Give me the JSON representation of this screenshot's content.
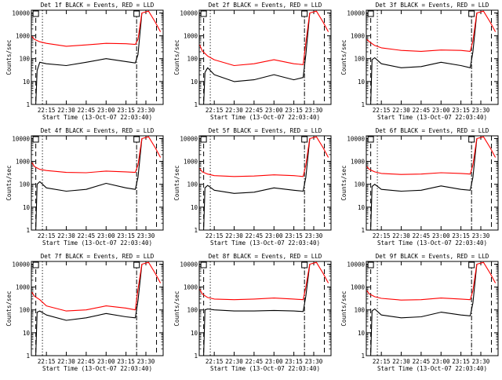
{
  "figure": {
    "xlabel": "Start Time (13-Oct-07 22:03:40)",
    "ylabel": "Counts/sec",
    "y_tick_labels": [
      "1",
      "10",
      "100",
      "1000",
      "10000"
    ],
    "x_tick_labels": [
      "22:15",
      "22:30",
      "22:45",
      "23:00",
      "23:15",
      "23:30"
    ]
  },
  "chart_data": [
    {
      "type": "line",
      "title": "Det 1f BLACK = Events, RED = LLD",
      "xlabel": "Start Time (13-Oct-07 22:03:40)",
      "ylabel": "Counts/sec",
      "y_scale": "log",
      "ylim": [
        1,
        10000
      ],
      "xlim": [
        "22:03:40",
        "23:43:00"
      ],
      "x_ticks": [
        "22:15",
        "22:30",
        "22:45",
        "23:00",
        "23:15",
        "23:30"
      ],
      "y_ticks": [
        1,
        10,
        100,
        1000,
        10000
      ],
      "series": [
        {
          "color": "#000000",
          "x": [
            "22:07",
            "22:08",
            "22:10",
            "22:15",
            "22:30",
            "22:45",
            "23:00",
            "23:15",
            "23:22",
            "23:24",
            "23:27"
          ],
          "y": [
            1,
            30,
            70,
            60,
            50,
            70,
            100,
            75,
            65,
            150,
            10000
          ]
        },
        {
          "color": "#ff0000",
          "x": [
            "22:04",
            "22:06",
            "22:10",
            "22:15",
            "22:30",
            "22:45",
            "23:00",
            "23:15",
            "23:22",
            "23:24",
            "23:27",
            "23:32",
            "23:37",
            "23:41"
          ],
          "y": [
            950,
            700,
            550,
            470,
            350,
            400,
            470,
            450,
            420,
            700,
            10000,
            12000,
            4000,
            1500
          ]
        }
      ],
      "vlines": [
        {
          "x": "22:07",
          "style": "dashed"
        },
        {
          "x": "22:12",
          "style": "dotted"
        },
        {
          "x": "23:23",
          "style": "dash-dot"
        },
        {
          "x": "23:38",
          "style": "dashed"
        }
      ]
    },
    {
      "type": "line",
      "title": "Det 2f BLACK = Events, RED = LLD",
      "xlabel": "Start Time (13-Oct-07 22:03:40)",
      "ylabel": "Counts/sec",
      "y_scale": "log",
      "ylim": [
        1,
        10000
      ],
      "xlim": [
        "22:03:40",
        "23:43:00"
      ],
      "x_ticks": [
        "22:15",
        "22:30",
        "22:45",
        "23:00",
        "23:15",
        "23:30"
      ],
      "y_ticks": [
        1,
        10,
        100,
        1000,
        10000
      ],
      "series": [
        {
          "color": "#000000",
          "x": [
            "22:07",
            "22:08",
            "22:10",
            "22:15",
            "22:30",
            "22:45",
            "23:00",
            "23:15",
            "23:22",
            "23:24",
            "23:27"
          ],
          "y": [
            1,
            25,
            40,
            20,
            10,
            12,
            20,
            12,
            15,
            150,
            10000
          ]
        },
        {
          "color": "#ff0000",
          "x": [
            "22:04",
            "22:06",
            "22:10",
            "22:15",
            "22:30",
            "22:45",
            "23:00",
            "23:15",
            "23:22",
            "23:24",
            "23:27",
            "23:32",
            "23:37",
            "23:41"
          ],
          "y": [
            400,
            220,
            130,
            90,
            50,
            60,
            90,
            60,
            55,
            500,
            10000,
            12000,
            4000,
            1500
          ]
        }
      ],
      "vlines": [
        {
          "x": "22:07",
          "style": "dashed"
        },
        {
          "x": "22:12",
          "style": "dotted"
        },
        {
          "x": "23:23",
          "style": "dash-dot"
        },
        {
          "x": "23:38",
          "style": "dashed"
        }
      ]
    },
    {
      "type": "line",
      "title": "Det 3f BLACK = Events, RED = LLD",
      "xlabel": "Start Time (13-Oct-07 22:03:40)",
      "ylabel": "Counts/sec",
      "y_scale": "log",
      "ylim": [
        1,
        10000
      ],
      "xlim": [
        "22:03:40",
        "23:43:00"
      ],
      "x_ticks": [
        "22:15",
        "22:30",
        "22:45",
        "23:00",
        "23:15",
        "23:30"
      ],
      "y_ticks": [
        1,
        10,
        100,
        1000,
        10000
      ],
      "series": [
        {
          "color": "#000000",
          "x": [
            "22:07",
            "22:08",
            "22:10",
            "22:15",
            "22:30",
            "22:45",
            "23:00",
            "23:15",
            "23:22",
            "23:24",
            "23:27"
          ],
          "y": [
            1,
            90,
            110,
            60,
            40,
            45,
            70,
            50,
            40,
            200,
            10000
          ]
        },
        {
          "color": "#ff0000",
          "x": [
            "22:04",
            "22:06",
            "22:10",
            "22:15",
            "22:30",
            "22:45",
            "23:00",
            "23:15",
            "23:22",
            "23:24",
            "23:27",
            "23:32",
            "23:37",
            "23:41"
          ],
          "y": [
            700,
            550,
            380,
            300,
            230,
            210,
            240,
            230,
            210,
            600,
            10000,
            12000,
            4000,
            1500
          ]
        }
      ],
      "vlines": [
        {
          "x": "22:07",
          "style": "dashed"
        },
        {
          "x": "22:12",
          "style": "dotted"
        },
        {
          "x": "23:23",
          "style": "dash-dot"
        },
        {
          "x": "23:38",
          "style": "dashed"
        }
      ]
    },
    {
      "type": "line",
      "title": "Det 4f BLACK = Events, RED = LLD",
      "xlabel": "Start Time (13-Oct-07 22:03:40)",
      "ylabel": "Counts/sec",
      "y_scale": "log",
      "ylim": [
        1,
        10000
      ],
      "xlim": [
        "22:03:40",
        "23:43:00"
      ],
      "x_ticks": [
        "22:15",
        "22:30",
        "22:45",
        "23:00",
        "23:15",
        "23:30"
      ],
      "y_ticks": [
        1,
        10,
        100,
        1000,
        10000
      ],
      "series": [
        {
          "color": "#000000",
          "x": [
            "22:07",
            "22:08",
            "22:10",
            "22:15",
            "22:30",
            "22:45",
            "23:00",
            "23:15",
            "23:22",
            "23:24",
            "23:27"
          ],
          "y": [
            1,
            100,
            130,
            70,
            50,
            60,
            110,
            70,
            60,
            200,
            10000
          ]
        },
        {
          "color": "#ff0000",
          "x": [
            "22:04",
            "22:06",
            "22:10",
            "22:15",
            "22:30",
            "22:45",
            "23:00",
            "23:15",
            "23:22",
            "23:24",
            "23:27",
            "23:32",
            "23:37",
            "23:41"
          ],
          "y": [
            900,
            600,
            450,
            400,
            330,
            320,
            380,
            350,
            330,
            700,
            10000,
            12000,
            4000,
            1500
          ]
        }
      ],
      "vlines": [
        {
          "x": "22:07",
          "style": "dashed"
        },
        {
          "x": "22:12",
          "style": "dotted"
        },
        {
          "x": "23:23",
          "style": "dash-dot"
        },
        {
          "x": "23:38",
          "style": "dashed"
        }
      ]
    },
    {
      "type": "line",
      "title": "Det 5f BLACK = Events, RED = LLD",
      "xlabel": "Start Time (13-Oct-07 22:03:40)",
      "ylabel": "Counts/sec",
      "y_scale": "log",
      "ylim": [
        1,
        10000
      ],
      "xlim": [
        "22:03:40",
        "23:43:00"
      ],
      "x_ticks": [
        "22:15",
        "22:30",
        "22:45",
        "23:00",
        "23:15",
        "23:30"
      ],
      "y_ticks": [
        1,
        10,
        100,
        1000,
        10000
      ],
      "series": [
        {
          "color": "#000000",
          "x": [
            "22:07",
            "22:08",
            "22:10",
            "22:15",
            "22:30",
            "22:45",
            "23:00",
            "23:15",
            "23:22",
            "23:24",
            "23:27"
          ],
          "y": [
            1,
            70,
            90,
            55,
            40,
            45,
            70,
            55,
            50,
            200,
            10000
          ]
        },
        {
          "color": "#ff0000",
          "x": [
            "22:04",
            "22:06",
            "22:10",
            "22:15",
            "22:30",
            "22:45",
            "23:00",
            "23:15",
            "23:22",
            "23:24",
            "23:27",
            "23:32",
            "23:37",
            "23:41"
          ],
          "y": [
            500,
            350,
            280,
            240,
            220,
            230,
            260,
            240,
            220,
            700,
            10000,
            12000,
            4000,
            1500
          ]
        }
      ],
      "vlines": [
        {
          "x": "22:07",
          "style": "dashed"
        },
        {
          "x": "22:12",
          "style": "dotted"
        },
        {
          "x": "23:23",
          "style": "dash-dot"
        },
        {
          "x": "23:38",
          "style": "dashed"
        }
      ]
    },
    {
      "type": "line",
      "title": "Det 6f BLACK = Events, RED = LLD",
      "xlabel": "Start Time (13-Oct-07 22:03:40)",
      "ylabel": "Counts/sec",
      "y_scale": "log",
      "ylim": [
        1,
        10000
      ],
      "xlim": [
        "22:03:40",
        "23:43:00"
      ],
      "x_ticks": [
        "22:15",
        "22:30",
        "22:45",
        "23:00",
        "23:15",
        "23:30"
      ],
      "y_ticks": [
        1,
        10,
        100,
        1000,
        10000
      ],
      "series": [
        {
          "color": "#000000",
          "x": [
            "22:07",
            "22:08",
            "22:10",
            "22:15",
            "22:30",
            "22:45",
            "23:00",
            "23:15",
            "23:22",
            "23:24",
            "23:27"
          ],
          "y": [
            1,
            80,
            100,
            60,
            50,
            55,
            85,
            60,
            55,
            200,
            10000
          ]
        },
        {
          "color": "#ff0000",
          "x": [
            "22:04",
            "22:06",
            "22:10",
            "22:15",
            "22:30",
            "22:45",
            "23:00",
            "23:15",
            "23:22",
            "23:24",
            "23:27",
            "23:32",
            "23:37",
            "23:41"
          ],
          "y": [
            600,
            450,
            350,
            300,
            270,
            280,
            320,
            300,
            280,
            700,
            10000,
            12000,
            4000,
            1500
          ]
        }
      ],
      "vlines": [
        {
          "x": "22:07",
          "style": "dashed"
        },
        {
          "x": "22:12",
          "style": "dotted"
        },
        {
          "x": "23:23",
          "style": "dash-dot"
        },
        {
          "x": "23:38",
          "style": "dashed"
        }
      ]
    },
    {
      "type": "line",
      "title": "Det 7f BLACK = Events, RED = LLD",
      "xlabel": "Start Time (13-Oct-07 22:03:40)",
      "ylabel": "Counts/sec",
      "y_scale": "log",
      "ylim": [
        1,
        10000
      ],
      "xlim": [
        "22:03:40",
        "23:43:00"
      ],
      "x_ticks": [
        "22:15",
        "22:30",
        "22:45",
        "23:00",
        "23:15",
        "23:30"
      ],
      "y_ticks": [
        1,
        10,
        100,
        1000,
        10000
      ],
      "series": [
        {
          "color": "#000000",
          "x": [
            "22:07",
            "22:08",
            "22:10",
            "22:15",
            "22:30",
            "22:45",
            "23:00",
            "23:15",
            "23:22",
            "23:24",
            "23:27"
          ],
          "y": [
            1,
            80,
            90,
            60,
            35,
            45,
            70,
            50,
            45,
            250,
            10000
          ]
        },
        {
          "color": "#ff0000",
          "x": [
            "22:04",
            "22:06",
            "22:10",
            "22:15",
            "22:30",
            "22:45",
            "23:00",
            "23:15",
            "23:22",
            "23:24",
            "23:27",
            "23:32",
            "23:37",
            "23:41"
          ],
          "y": [
            600,
            400,
            280,
            150,
            90,
            100,
            150,
            120,
            100,
            800,
            10000,
            12000,
            4000,
            1500
          ]
        }
      ],
      "vlines": [
        {
          "x": "22:07",
          "style": "dashed"
        },
        {
          "x": "22:12",
          "style": "dotted"
        },
        {
          "x": "23:23",
          "style": "dash-dot"
        },
        {
          "x": "23:38",
          "style": "dashed"
        }
      ]
    },
    {
      "type": "line",
      "title": "Det 8f BLACK = Events, RED = LLD",
      "xlabel": "Start Time (13-Oct-07 22:03:40)",
      "ylabel": "Counts/sec",
      "y_scale": "log",
      "ylim": [
        1,
        10000
      ],
      "xlim": [
        "22:03:40",
        "23:43:00"
      ],
      "x_ticks": [
        "22:15",
        "22:30",
        "22:45",
        "23:00",
        "23:15",
        "23:30"
      ],
      "y_ticks": [
        1,
        10,
        100,
        1000,
        10000
      ],
      "series": [
        {
          "color": "#000000",
          "x": [
            "22:07",
            "22:08",
            "22:10",
            "22:15",
            "22:30",
            "22:45",
            "23:00",
            "23:15",
            "23:22",
            "23:24",
            "23:27"
          ],
          "y": [
            1,
            100,
            110,
            100,
            90,
            90,
            95,
            90,
            85,
            400,
            10000
          ]
        },
        {
          "color": "#ff0000",
          "x": [
            "22:04",
            "22:06",
            "22:10",
            "22:15",
            "22:30",
            "22:45",
            "23:00",
            "23:15",
            "23:22",
            "23:24",
            "23:27",
            "23:32",
            "23:37",
            "23:41"
          ],
          "y": [
            800,
            500,
            350,
            300,
            280,
            300,
            330,
            300,
            280,
            1000,
            10000,
            12000,
            4000,
            1500
          ]
        }
      ],
      "vlines": [
        {
          "x": "22:07",
          "style": "dashed"
        },
        {
          "x": "22:12",
          "style": "dotted"
        },
        {
          "x": "23:23",
          "style": "dash-dot"
        },
        {
          "x": "23:38",
          "style": "dashed"
        }
      ]
    },
    {
      "type": "line",
      "title": "Det 9f BLACK = Events, RED = LLD",
      "xlabel": "Start Time (13-Oct-07 22:03:40)",
      "ylabel": "Counts/sec",
      "y_scale": "log",
      "ylim": [
        1,
        10000
      ],
      "xlim": [
        "22:03:40",
        "23:43:00"
      ],
      "x_ticks": [
        "22:15",
        "22:30",
        "22:45",
        "23:00",
        "23:15",
        "23:30"
      ],
      "y_ticks": [
        1,
        10,
        100,
        1000,
        10000
      ],
      "series": [
        {
          "color": "#000000",
          "x": [
            "22:07",
            "22:08",
            "22:10",
            "22:15",
            "22:30",
            "22:45",
            "23:00",
            "23:15",
            "23:22",
            "23:24",
            "23:27"
          ],
          "y": [
            1,
            90,
            110,
            60,
            45,
            50,
            80,
            60,
            55,
            200,
            10000
          ]
        },
        {
          "color": "#ff0000",
          "x": [
            "22:04",
            "22:06",
            "22:10",
            "22:15",
            "22:30",
            "22:45",
            "23:00",
            "23:15",
            "23:22",
            "23:24",
            "23:27",
            "23:32",
            "23:37",
            "23:41"
          ],
          "y": [
            700,
            500,
            380,
            320,
            270,
            280,
            330,
            300,
            280,
            700,
            10000,
            12000,
            4000,
            1500
          ]
        }
      ],
      "vlines": [
        {
          "x": "22:07",
          "style": "dashed"
        },
        {
          "x": "22:12",
          "style": "dotted"
        },
        {
          "x": "23:23",
          "style": "dash-dot"
        },
        {
          "x": "23:38",
          "style": "dashed"
        }
      ]
    }
  ]
}
